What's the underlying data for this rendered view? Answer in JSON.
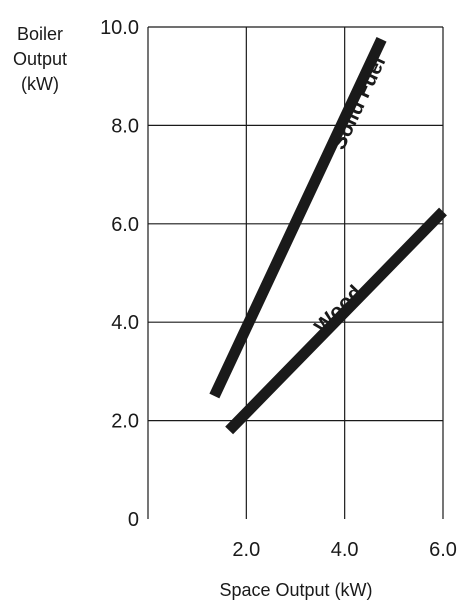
{
  "chart_data": {
    "type": "line",
    "xlabel": "Space Output (kW)",
    "ylabel": [
      "Boiler",
      "Output",
      "(kW)"
    ],
    "xlim": [
      0,
      6
    ],
    "ylim": [
      0,
      10
    ],
    "x_ticks": [
      {
        "value": 2,
        "label": "2.0"
      },
      {
        "value": 4,
        "label": "4.0"
      },
      {
        "value": 6,
        "label": "6.0"
      }
    ],
    "y_ticks": [
      {
        "value": 0,
        "label": "0"
      },
      {
        "value": 2,
        "label": "2.0"
      },
      {
        "value": 4,
        "label": "4.0"
      },
      {
        "value": 6,
        "label": "6.0"
      },
      {
        "value": 8,
        "label": "8.0"
      },
      {
        "value": 10,
        "label": "10.0"
      }
    ],
    "grid": true,
    "line_color": "#1a1a1a",
    "series": [
      {
        "name": "Solid Fuel",
        "x": [
          1.35,
          4.75
        ],
        "y": [
          2.5,
          9.75
        ]
      },
      {
        "name": "Wood",
        "x": [
          1.65,
          6.0
        ],
        "y": [
          1.8,
          6.25
        ]
      }
    ]
  }
}
